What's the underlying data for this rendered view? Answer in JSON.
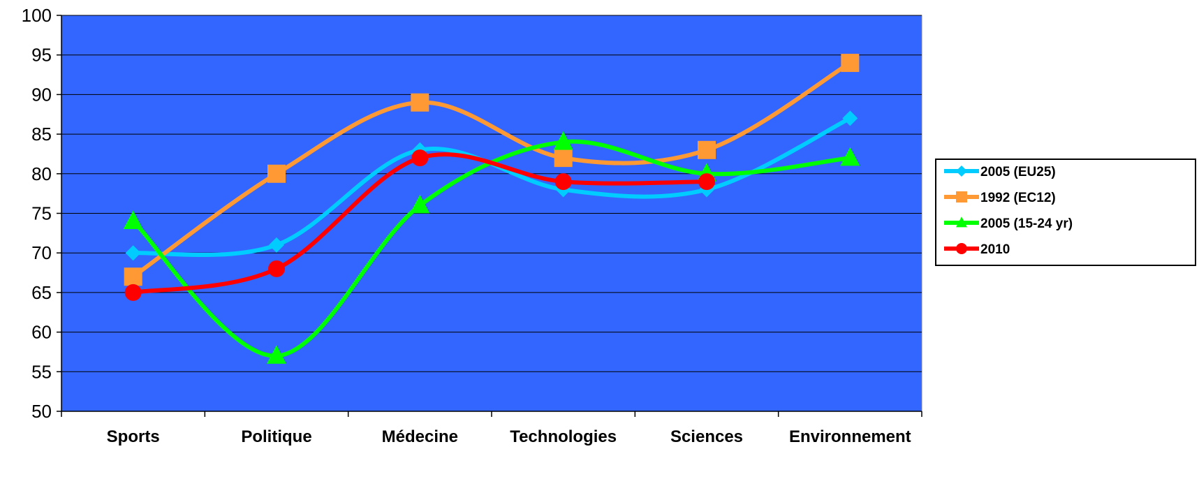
{
  "chart_data": {
    "type": "line",
    "title": "",
    "xlabel": "",
    "ylabel": "",
    "categories": [
      "Sports",
      "Politique",
      "Médecine",
      "Technologies",
      "Sciences",
      "Environnement"
    ],
    "ylim": [
      50,
      100
    ],
    "yticks": [
      "50",
      "55",
      "60",
      "65",
      "70",
      "75",
      "80",
      "85",
      "90",
      "95",
      "100"
    ],
    "grid": true,
    "smooth": true,
    "plot_background": "#3366ff",
    "legend_placement": "right",
    "series": [
      {
        "name": "2005 (EU25)",
        "color": "#00ccff",
        "marker": "diamond",
        "values": [
          70,
          71,
          83,
          78,
          78,
          87
        ]
      },
      {
        "name": "1992 (EC12)",
        "color": "#ff9933",
        "marker": "square",
        "values": [
          67,
          80,
          89,
          82,
          83,
          94
        ]
      },
      {
        "name": "2005 (15-24 yr)",
        "color": "#00ff00",
        "marker": "triangle",
        "values": [
          74,
          57,
          76,
          84,
          80,
          82
        ]
      },
      {
        "name": "2010",
        "color": "#ff0000",
        "marker": "circle",
        "values": [
          65,
          68,
          82,
          79,
          79,
          null
        ]
      }
    ]
  }
}
